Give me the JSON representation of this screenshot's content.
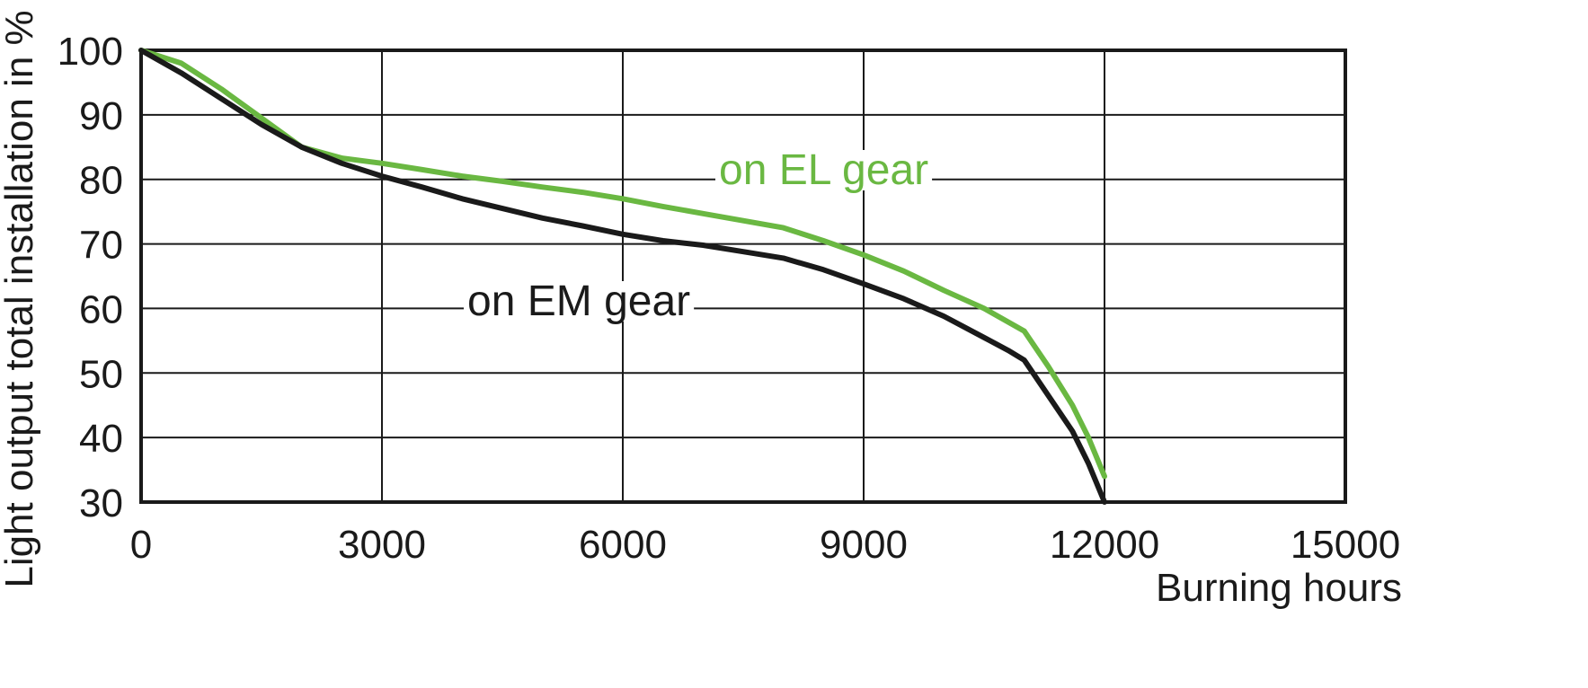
{
  "chart_data": {
    "type": "line",
    "title": "",
    "xlabel": "Burning hours",
    "ylabel": "Light output total installation in %",
    "xlim": [
      0,
      15000
    ],
    "ylim": [
      30,
      100
    ],
    "x_ticks": [
      0,
      3000,
      6000,
      9000,
      12000,
      15000
    ],
    "y_ticks": [
      30,
      40,
      50,
      60,
      70,
      80,
      90,
      100
    ],
    "grid": true,
    "series": [
      {
        "name": "on EL gear",
        "color": "#6ab842",
        "x": [
          0,
          500,
          1000,
          1500,
          2000,
          2500,
          3000,
          3500,
          4000,
          4500,
          5000,
          5500,
          6000,
          6500,
          7000,
          7500,
          8000,
          8500,
          9000,
          9500,
          10000,
          10500,
          11000,
          11300,
          11600,
          11800,
          12000
        ],
        "y": [
          100,
          98,
          94,
          89.5,
          85,
          83.3,
          82.5,
          81.5,
          80.5,
          79.7,
          78.8,
          78,
          77,
          75.8,
          74.7,
          73.6,
          72.5,
          70.5,
          68.3,
          65.8,
          62.8,
          60,
          56.5,
          51,
          45,
          40,
          34
        ]
      },
      {
        "name": "on EM gear",
        "color": "#1a1a1a",
        "x": [
          0,
          500,
          1000,
          1500,
          2000,
          2500,
          3000,
          3500,
          4000,
          4500,
          5000,
          5500,
          6000,
          6500,
          7000,
          7500,
          8000,
          8500,
          9000,
          9500,
          10000,
          10500,
          10800,
          11000,
          11300,
          11600,
          11800,
          12000
        ],
        "y": [
          100,
          96.5,
          92.5,
          88.5,
          85,
          82.5,
          80.5,
          78.8,
          77,
          75.5,
          74,
          72.8,
          71.5,
          70.5,
          69.8,
          68.8,
          67.8,
          66,
          63.8,
          61.5,
          58.8,
          55.5,
          53.5,
          52,
          46.5,
          41,
          36,
          30
        ]
      }
    ]
  }
}
